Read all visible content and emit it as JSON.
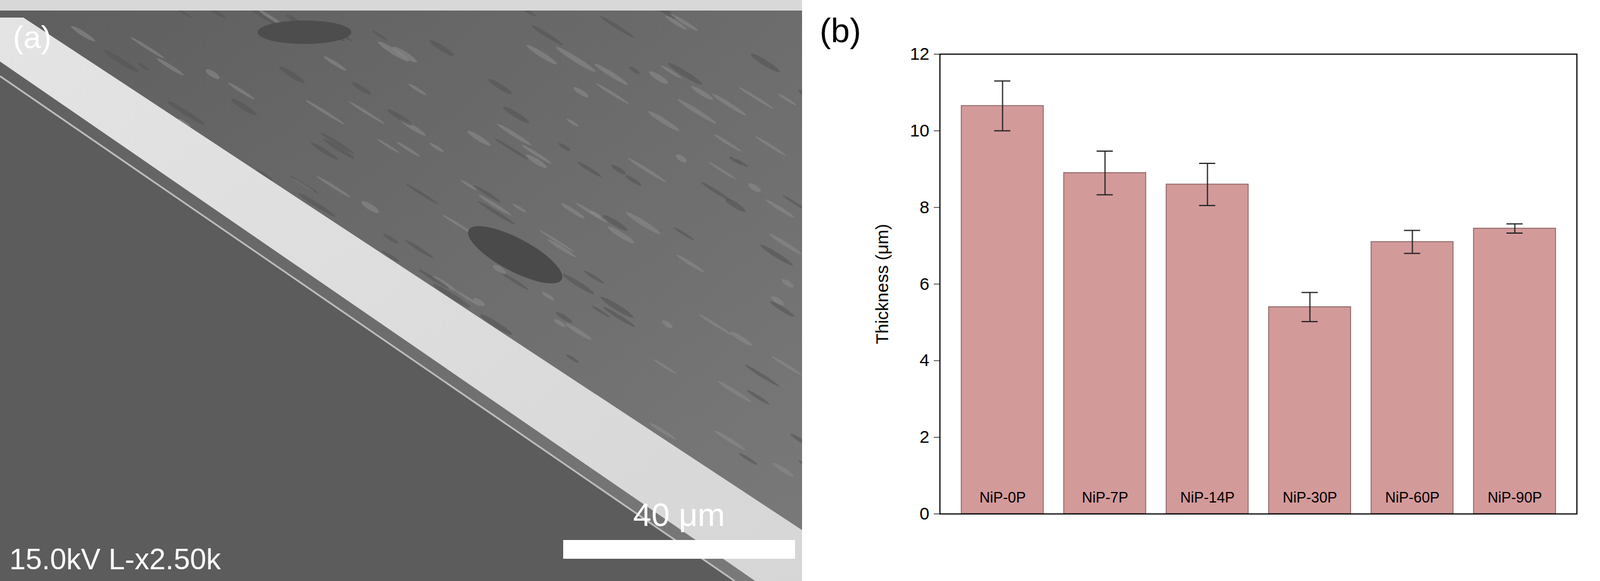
{
  "chart_data": [
    {
      "type": "image",
      "panel_label": "(a)",
      "annotations": [
        "15.0kV L-x2.50k"
      ],
      "scale_bar": "40 μm"
    },
    {
      "type": "bar",
      "panel_label": "(b)",
      "categories": [
        "NiP-0P",
        "NiP-7P",
        "NiP-14P",
        "NiP-30P",
        "NiP-60P",
        "NiP-90P"
      ],
      "values": [
        10.65,
        8.9,
        8.6,
        5.4,
        7.1,
        7.45
      ],
      "errors": [
        0.65,
        0.57,
        0.55,
        0.38,
        0.3,
        0.12
      ],
      "color": "#d39a9a",
      "ylabel": "Thickness (μm)",
      "ylim": [
        0,
        12
      ],
      "yticks": [
        0,
        2,
        4,
        6,
        8,
        10,
        12
      ]
    }
  ]
}
